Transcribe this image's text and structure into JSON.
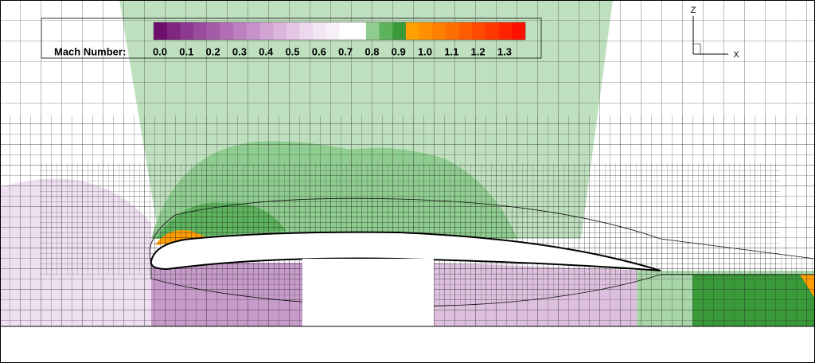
{
  "legend": {
    "title": "Mach Number:",
    "ticks": [
      "0.0",
      "0.1",
      "0.2",
      "0.3",
      "0.4",
      "0.5",
      "0.6",
      "0.7",
      "0.8",
      "0.9",
      "1.0",
      "1.1",
      "1.2",
      "1.3"
    ],
    "colors": [
      "#6e0f6e",
      "#7e2680",
      "#8c3990",
      "#994b9c",
      "#a55ca8",
      "#b16eb4",
      "#bc80bf",
      "#c792c9",
      "#d1a3d3",
      "#dbb5dc",
      "#e4c6e5",
      "#ecd7ed",
      "#f3e6f3",
      "#f8f0f8",
      "#ffffff",
      "#ffffff",
      "#8fcc8f",
      "#5cb35c",
      "#3a9a3a",
      "#ffa000",
      "#ff9000",
      "#ff7f00",
      "#ff6e00",
      "#ff5c00",
      "#ff4a00",
      "#ff3800",
      "#ff2400",
      "#ff1000"
    ]
  },
  "triad": {
    "z": "Z",
    "x": "X"
  }
}
